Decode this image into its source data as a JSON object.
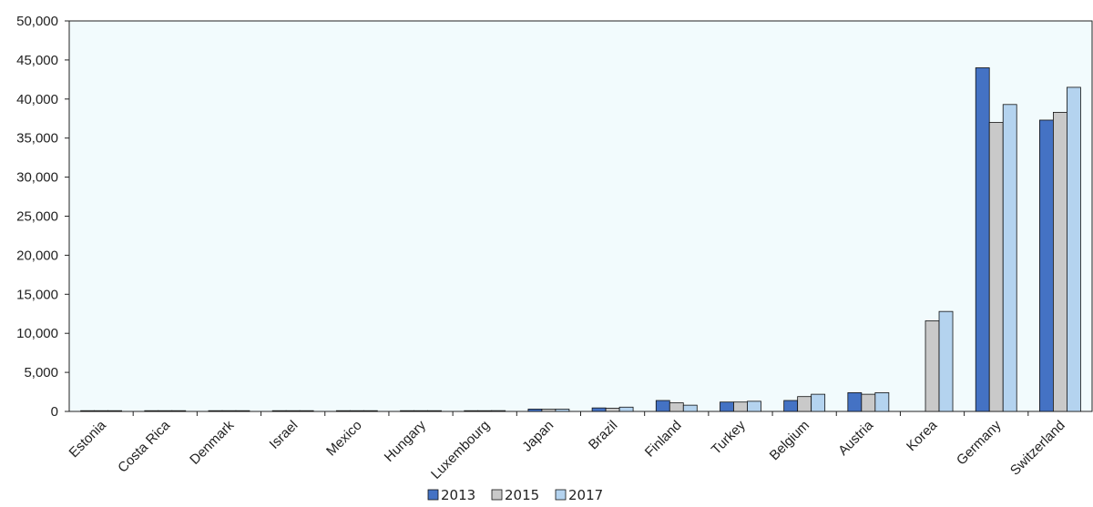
{
  "chart_data": {
    "type": "bar",
    "categories": [
      "Estonia",
      "Costa Rica",
      "Denmark",
      "Israel",
      "Mexico",
      "Hungary",
      "Luxembourg",
      "Japan",
      "Brazil",
      "Finland",
      "Turkey",
      "Belgium",
      "Austria",
      "Korea",
      "Germany",
      "Switzerland"
    ],
    "series": [
      {
        "name": "2013",
        "color": "#4472c4",
        "values": [
          0,
          0,
          0,
          0,
          0,
          0,
          60,
          300,
          450,
          1400,
          1200,
          1400,
          2400,
          null,
          44000,
          37300
        ]
      },
      {
        "name": "2015",
        "color": "#c9c9c9",
        "values": [
          0,
          0,
          0,
          0,
          0,
          0,
          80,
          280,
          420,
          1100,
          1200,
          1900,
          2200,
          11600,
          37000,
          38300
        ]
      },
      {
        "name": "2017",
        "color": "#b4d3ef",
        "values": [
          0,
          0,
          0,
          0,
          0,
          50,
          100,
          290,
          550,
          800,
          1300,
          2200,
          2400,
          12800,
          39300,
          41500
        ]
      }
    ],
    "ylim": [
      0,
      50000
    ],
    "yticks": [
      "0",
      "5,000",
      "10,000",
      "15,000",
      "20,000",
      "25,000",
      "30,000",
      "35,000",
      "40,000",
      "45,000",
      "50,000"
    ],
    "plot_background": "#f2fbfd",
    "grid": false,
    "legend_position": "bottom-center"
  }
}
